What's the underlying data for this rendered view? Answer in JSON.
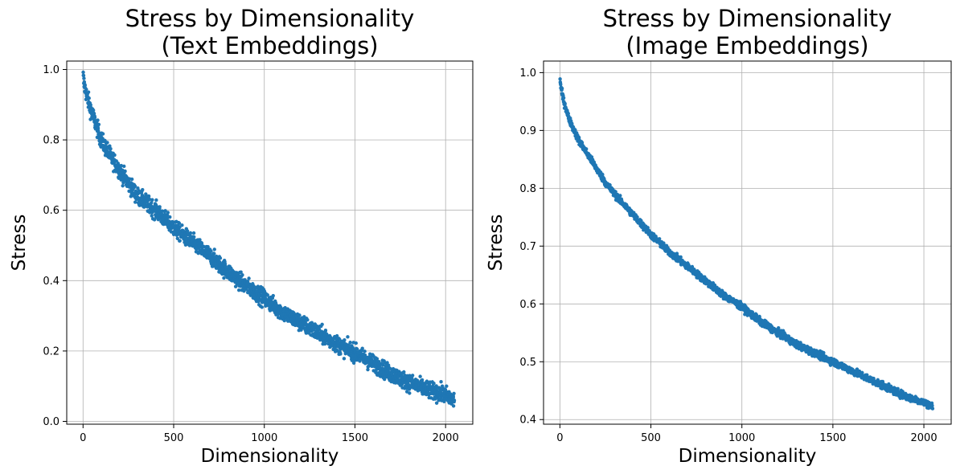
{
  "chart_data": [
    {
      "type": "scatter",
      "title_lines": [
        "Stress by Dimensionality",
        "(Text Embeddings)"
      ],
      "xlabel": "Dimensionality",
      "ylabel": "Stress",
      "xlim": [
        -90,
        2150
      ],
      "ylim": [
        -0.008,
        1.024
      ],
      "xticks": [
        0,
        500,
        1000,
        1500,
        2000
      ],
      "yticks": [
        0.0,
        0.2,
        0.4,
        0.6,
        0.8,
        1.0
      ],
      "ytick_decimals": 1,
      "grid": true,
      "series": [
        {
          "name": "Text Embeddings",
          "color": "#1f77b4",
          "x_start": 1,
          "x_end": 2048,
          "curve_points": [
            [
              1,
              0.98
            ],
            [
              5,
              0.96
            ],
            [
              20,
              0.925
            ],
            [
              50,
              0.875
            ],
            [
              100,
              0.8
            ],
            [
              150,
              0.755
            ],
            [
              200,
              0.715
            ],
            [
              300,
              0.64
            ],
            [
              400,
              0.6
            ],
            [
              500,
              0.55
            ],
            [
              600,
              0.51
            ],
            [
              700,
              0.47
            ],
            [
              800,
              0.425
            ],
            [
              900,
              0.385
            ],
            [
              1000,
              0.35
            ],
            [
              1100,
              0.31
            ],
            [
              1200,
              0.28
            ],
            [
              1300,
              0.25
            ],
            [
              1400,
              0.22
            ],
            [
              1500,
              0.195
            ],
            [
              1600,
              0.165
            ],
            [
              1700,
              0.135
            ],
            [
              1800,
              0.11
            ],
            [
              1900,
              0.09
            ],
            [
              2000,
              0.075
            ],
            [
              2048,
              0.06
            ]
          ],
          "noise": 0.012
        }
      ]
    },
    {
      "type": "scatter",
      "title_lines": [
        "Stress by Dimensionality",
        "(Image Embeddings)"
      ],
      "xlabel": "Dimensionality",
      "ylabel": "Stress",
      "xlim": [
        -90,
        2150
      ],
      "ylim": [
        0.392,
        1.02
      ],
      "xticks": [
        0,
        500,
        1000,
        1500,
        2000
      ],
      "yticks": [
        0.4,
        0.5,
        0.6,
        0.7,
        0.8,
        0.9,
        1.0
      ],
      "ytick_decimals": 1,
      "grid": true,
      "series": [
        {
          "name": "Image Embeddings",
          "color": "#1f77b4",
          "x_start": 1,
          "x_end": 2048,
          "curve_points": [
            [
              1,
              0.99
            ],
            [
              5,
              0.975
            ],
            [
              20,
              0.952
            ],
            [
              50,
              0.92
            ],
            [
              100,
              0.885
            ],
            [
              150,
              0.86
            ],
            [
              200,
              0.835
            ],
            [
              250,
              0.81
            ],
            [
              300,
              0.79
            ],
            [
              400,
              0.755
            ],
            [
              500,
              0.72
            ],
            [
              600,
              0.69
            ],
            [
              700,
              0.665
            ],
            [
              800,
              0.64
            ],
            [
              900,
              0.615
            ],
            [
              1000,
              0.595
            ],
            [
              1100,
              0.57
            ],
            [
              1200,
              0.55
            ],
            [
              1300,
              0.53
            ],
            [
              1400,
              0.515
            ],
            [
              1500,
              0.5
            ],
            [
              1600,
              0.485
            ],
            [
              1700,
              0.47
            ],
            [
              1800,
              0.455
            ],
            [
              1900,
              0.44
            ],
            [
              2000,
              0.43
            ],
            [
              2048,
              0.422
            ]
          ],
          "noise": 0.003
        }
      ]
    }
  ]
}
